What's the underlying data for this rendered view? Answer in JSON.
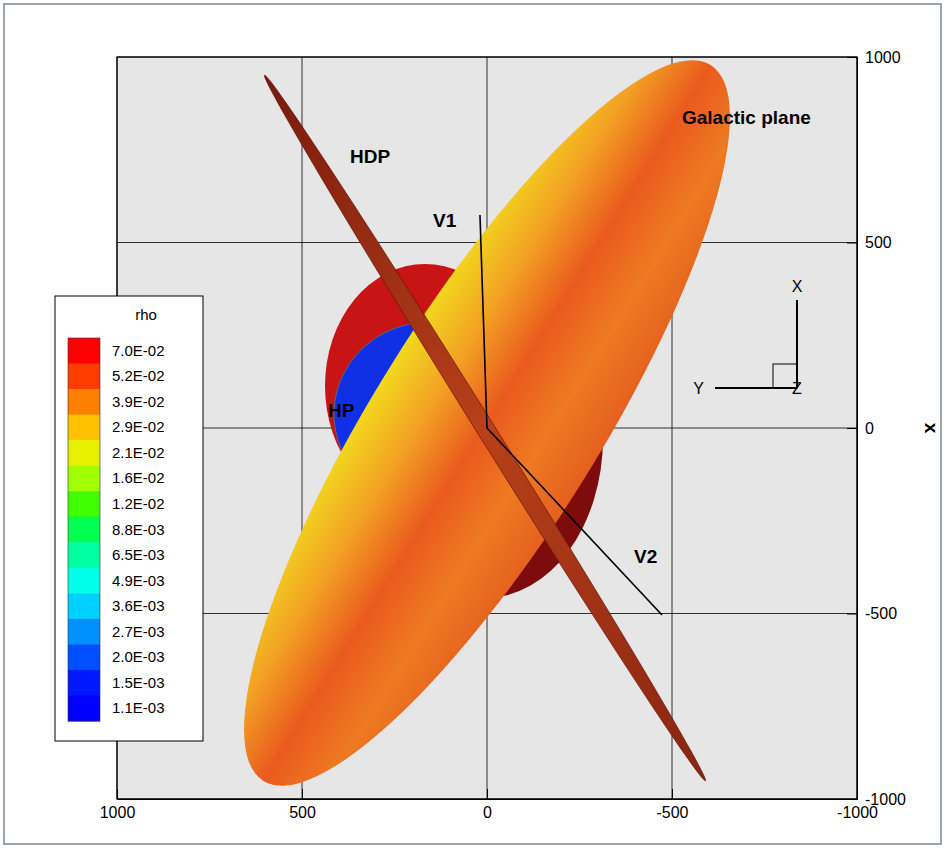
{
  "chart_data": {
    "type": "surface",
    "ylabel": "x",
    "xlim": [
      1000,
      -1000
    ],
    "xticks": [
      1000,
      500,
      0,
      -500,
      -1000
    ],
    "ylim": [
      -1000,
      1000
    ],
    "yticks": [
      -1000,
      -500,
      0,
      500,
      1000
    ],
    "grid": true,
    "series": [
      {
        "name": "V1",
        "type": "line",
        "color": "#000000",
        "x": [
          0,
          19
        ],
        "values": [
          0,
          574
        ]
      },
      {
        "name": "V2",
        "type": "line",
        "color": "#000000",
        "x": [
          0,
          -473
        ],
        "values": [
          0,
          -504
        ]
      }
    ],
    "annotations": [
      "HDP",
      "Galactic plane",
      "HP"
    ],
    "triad": [
      "X",
      "Y",
      "Z"
    ],
    "colorbar": {
      "title": "rho",
      "ticks": [
        {
          "value": 0.07,
          "label": "7.0E-02"
        },
        {
          "value": 0.052,
          "label": "5.2E-02"
        },
        {
          "value": 0.039,
          "label": "3.9E-02"
        },
        {
          "value": 0.029,
          "label": "2.9E-02"
        },
        {
          "value": 0.021,
          "label": "2.1E-02"
        },
        {
          "value": 0.016,
          "label": "1.6E-02"
        },
        {
          "value": 0.012,
          "label": "1.2E-02"
        },
        {
          "value": 0.0088,
          "label": "8.8E-03"
        },
        {
          "value": 0.0065,
          "label": "6.5E-03"
        },
        {
          "value": 0.0049,
          "label": "4.9E-03"
        },
        {
          "value": 0.0036,
          "label": "3.6E-03"
        },
        {
          "value": 0.0027,
          "label": "2.7E-03"
        },
        {
          "value": 0.002,
          "label": "2.0E-03"
        },
        {
          "value": 0.0015,
          "label": "1.5E-03"
        },
        {
          "value": 0.0011,
          "label": "1.1E-03"
        }
      ],
      "colors": [
        "#ff0000",
        "#ff3c00",
        "#ff8000",
        "#ffc000",
        "#e8f000",
        "#a0ff00",
        "#40ff00",
        "#00ff50",
        "#00ffa0",
        "#00ffe8",
        "#00d0ff",
        "#0090ff",
        "#0050ff",
        "#0018ff",
        "#0000ff"
      ]
    }
  }
}
